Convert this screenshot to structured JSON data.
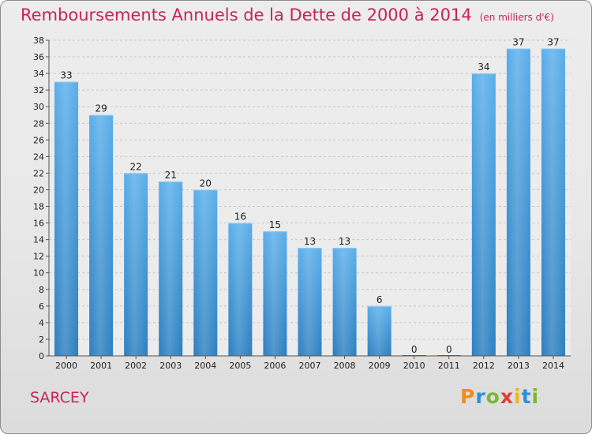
{
  "header": {
    "title": "Remboursements Annuels de la Dette de 2000 à 2014",
    "unit_note": "(en milliers d'€)"
  },
  "commune": {
    "name": "SARCEY"
  },
  "brand": {
    "letters": [
      "P",
      "r",
      "o",
      "x",
      "i",
      "t",
      "i"
    ],
    "colors": [
      "#f08c1e",
      "#2f8fd8",
      "#7ab82f",
      "#e23d3d",
      "#f0b41e",
      "#2f8fd8",
      "#7ab82f"
    ]
  },
  "colors": {
    "title": "#c4245a",
    "bar_top": "#5aaeea",
    "bar_bottom": "#2c7fc0",
    "grid": "#c8c8c8",
    "axis_text": "#222222"
  },
  "chart_data": {
    "type": "bar",
    "title": "Remboursements Annuels de la Dette de 2000 à 2014",
    "ylabel": "en milliers d'€",
    "xlabel": "",
    "categories": [
      "2000",
      "2001",
      "2002",
      "2003",
      "2004",
      "2005",
      "2006",
      "2007",
      "2008",
      "2009",
      "2010",
      "2011",
      "2012",
      "2013",
      "2014"
    ],
    "values": [
      33,
      29,
      22,
      21,
      20,
      16,
      15,
      13,
      13,
      6,
      0,
      0,
      34,
      37,
      37
    ],
    "ylim": [
      0,
      38
    ],
    "yticks": [
      0,
      2,
      4,
      6,
      8,
      10,
      12,
      14,
      16,
      18,
      20,
      22,
      24,
      26,
      28,
      30,
      32,
      34,
      36,
      38
    ],
    "grid": true
  }
}
